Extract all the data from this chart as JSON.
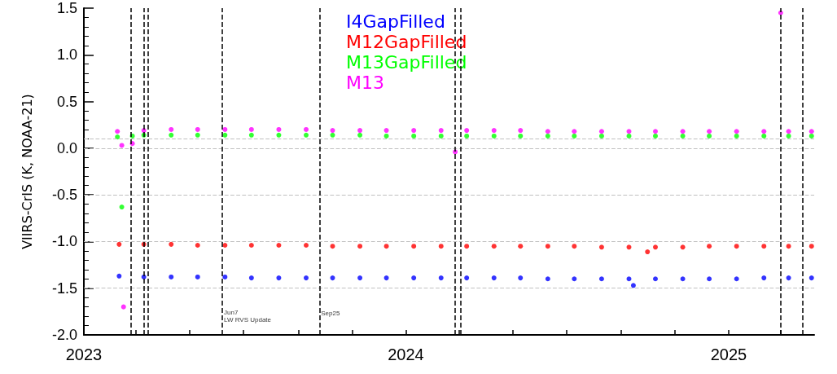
{
  "chart_data": {
    "type": "scatter",
    "ylabel": "VIIRS-CrIS (K, NOAA-21)",
    "marker": "circle",
    "legend": "top",
    "grid": false,
    "xlim": [
      "2023-01-01",
      "2025-04-08"
    ],
    "xticks": [
      {
        "value": "2023-01-01",
        "label": "2023"
      },
      {
        "value": "2023-03-01",
        "label": null
      },
      {
        "value": "2023-05-01",
        "label": null
      },
      {
        "value": "2023-07-01",
        "label": null
      },
      {
        "value": "2023-09-01",
        "label": null
      },
      {
        "value": "2023-11-01",
        "label": null
      },
      {
        "value": "2024-01-01",
        "label": "2024"
      },
      {
        "value": "2024-03-01",
        "label": null
      },
      {
        "value": "2024-05-01",
        "label": null
      },
      {
        "value": "2024-07-01",
        "label": null
      },
      {
        "value": "2024-09-01",
        "label": null
      },
      {
        "value": "2024-11-01",
        "label": null
      },
      {
        "value": "2025-01-01",
        "label": "2025"
      },
      {
        "value": "2025-03-01",
        "label": null
      }
    ],
    "ylim": [
      -2,
      1.5
    ],
    "yticks": [
      {
        "value": -2,
        "label": "-2.0"
      },
      -1.5,
      {
        "value": -1,
        "label": "-1.0"
      },
      -0.5,
      {
        "value": 0,
        "label": "0.0"
      },
      0.5,
      {
        "value": 1,
        "label": "1.0"
      },
      1.5
    ],
    "series": [
      {
        "name": "I4GapFilled",
        "color": "#0000ff",
        "x": [
          "2023-02-10",
          "2023-03-10",
          "2023-04-10",
          "2023-05-10",
          "2023-06-10",
          "2023-07-10",
          "2023-08-10",
          "2023-09-10",
          "2023-10-10",
          "2023-11-10",
          "2023-12-10",
          "2024-01-10",
          "2024-02-10",
          "2024-03-10",
          "2024-04-10",
          "2024-05-10",
          "2024-06-10",
          "2024-07-10",
          "2024-08-10",
          "2024-09-10",
          "2024-09-15",
          "2024-10-10",
          "2024-11-10",
          "2024-12-10",
          "2025-01-10",
          "2025-02-10",
          "2025-03-10",
          "2025-04-05"
        ],
        "values": [
          -1.37,
          -1.38,
          -1.38,
          -1.38,
          -1.38,
          -1.39,
          -1.39,
          -1.39,
          -1.39,
          -1.39,
          -1.39,
          -1.39,
          -1.39,
          -1.39,
          -1.39,
          -1.39,
          -1.4,
          -1.4,
          -1.4,
          -1.4,
          -1.47,
          -1.4,
          -1.4,
          -1.4,
          -1.4,
          -1.39,
          -1.39,
          -1.39
        ]
      },
      {
        "name": "M12GapFilled",
        "color": "#ff0000",
        "x": [
          "2023-02-10",
          "2023-03-10",
          "2023-04-10",
          "2023-05-10",
          "2023-06-10",
          "2023-07-10",
          "2023-08-10",
          "2023-09-10",
          "2023-10-10",
          "2023-11-10",
          "2023-12-10",
          "2024-01-10",
          "2024-02-10",
          "2024-03-10",
          "2024-04-10",
          "2024-05-10",
          "2024-06-10",
          "2024-07-10",
          "2024-08-10",
          "2024-09-10",
          "2024-10-01",
          "2024-10-10",
          "2024-11-10",
          "2024-12-10",
          "2025-01-10",
          "2025-02-10",
          "2025-03-10",
          "2025-04-05"
        ],
        "values": [
          -1.03,
          -1.03,
          -1.03,
          -1.04,
          -1.04,
          -1.04,
          -1.04,
          -1.04,
          -1.05,
          -1.05,
          -1.05,
          -1.05,
          -1.05,
          -1.05,
          -1.05,
          -1.05,
          -1.05,
          -1.05,
          -1.06,
          -1.06,
          -1.11,
          -1.06,
          -1.06,
          -1.05,
          -1.05,
          -1.05,
          -1.05,
          -1.05
        ]
      },
      {
        "name": "M13GapFilled",
        "color": "#00ff00",
        "x": [
          "2023-02-08",
          "2023-02-13",
          "2023-02-25",
          "2023-03-10",
          "2023-04-10",
          "2023-05-10",
          "2023-06-10",
          "2023-07-10",
          "2023-08-10",
          "2023-09-10",
          "2023-10-10",
          "2023-11-10",
          "2023-12-10",
          "2024-01-10",
          "2024-02-10",
          "2024-03-10",
          "2024-04-10",
          "2024-05-10",
          "2024-06-10",
          "2024-07-10",
          "2024-08-10",
          "2024-09-10",
          "2024-10-10",
          "2024-11-10",
          "2024-12-10",
          "2025-01-10",
          "2025-02-10",
          "2025-03-10",
          "2025-04-05"
        ],
        "values": [
          0.12,
          -0.63,
          0.13,
          0.14,
          0.14,
          0.14,
          0.14,
          0.14,
          0.14,
          0.14,
          0.14,
          0.14,
          0.13,
          0.13,
          0.13,
          0.13,
          0.13,
          0.13,
          0.13,
          0.13,
          0.13,
          0.13,
          0.13,
          0.13,
          0.13,
          0.13,
          0.13,
          0.13,
          0.13
        ]
      },
      {
        "name": "M13",
        "color": "#ff00ff",
        "x": [
          "2023-02-08",
          "2023-02-13",
          "2023-02-15",
          "2023-02-25",
          "2023-03-10",
          "2023-04-10",
          "2023-05-10",
          "2023-06-10",
          "2023-07-10",
          "2023-08-10",
          "2023-09-10",
          "2023-10-10",
          "2023-11-10",
          "2023-12-10",
          "2024-01-10",
          "2024-02-10",
          "2024-02-26",
          "2024-03-10",
          "2024-04-10",
          "2024-05-10",
          "2024-06-10",
          "2024-07-10",
          "2024-08-10",
          "2024-09-10",
          "2024-10-10",
          "2024-11-10",
          "2024-12-10",
          "2025-01-10",
          "2025-02-10",
          "2025-03-01",
          "2025-03-10",
          "2025-04-05"
        ],
        "values": [
          0.18,
          0.03,
          -1.7,
          0.05,
          0.19,
          0.2,
          0.2,
          0.2,
          0.2,
          0.2,
          0.2,
          0.19,
          0.19,
          0.19,
          0.19,
          0.19,
          -0.04,
          0.19,
          0.19,
          0.19,
          0.18,
          0.18,
          0.18,
          0.18,
          0.18,
          0.18,
          0.18,
          0.18,
          0.18,
          1.45,
          0.18,
          0.18
        ]
      }
    ],
    "ref_lines": [
      {
        "axis": "y",
        "value": 0.1,
        "color": "#c0c0c0",
        "line_style": "dashed"
      },
      {
        "axis": "y",
        "value": 0.0,
        "color": "#c0c0c0",
        "line_style": "dashed"
      },
      {
        "axis": "y",
        "value": -0.5,
        "color": "#c0c0c0",
        "line_style": "dashed"
      },
      {
        "axis": "y",
        "value": -1.0,
        "color": "#c0c0c0",
        "line_style": "dashed"
      },
      {
        "axis": "y",
        "value": -1.5,
        "color": "#c0c0c0",
        "line_style": "dashed"
      },
      {
        "axis": "x",
        "value": "2023-02-23",
        "color": "#000000",
        "line_style": "dashed"
      },
      {
        "axis": "x",
        "value": "2023-03-10",
        "color": "#000000",
        "line_style": "dashed"
      },
      {
        "axis": "x",
        "value": "2023-03-15",
        "color": "#000000",
        "line_style": "dashed"
      },
      {
        "axis": "x",
        "value": "2023-06-07",
        "color": "#000000",
        "line_style": "dashed"
      },
      {
        "axis": "x",
        "value": "2023-09-25",
        "color": "#000000",
        "line_style": "dashed"
      },
      {
        "axis": "x",
        "value": "2024-02-26",
        "color": "#000000",
        "line_style": "dashed"
      },
      {
        "axis": "x",
        "value": "2024-03-03",
        "color": "#000000",
        "line_style": "dashed"
      },
      {
        "axis": "x",
        "value": "2025-03-01",
        "color": "#000000",
        "line_style": "dashed"
      },
      {
        "axis": "x",
        "value": "2025-03-26",
        "color": "#000000",
        "line_style": "dashed"
      }
    ],
    "annotations": [
      {
        "text": "Jun7\nLW RVS Update",
        "x": "2023-06-07",
        "y": -1.8
      },
      {
        "text": "Sep25",
        "x": "2023-09-25",
        "y": -1.77
      }
    ]
  }
}
